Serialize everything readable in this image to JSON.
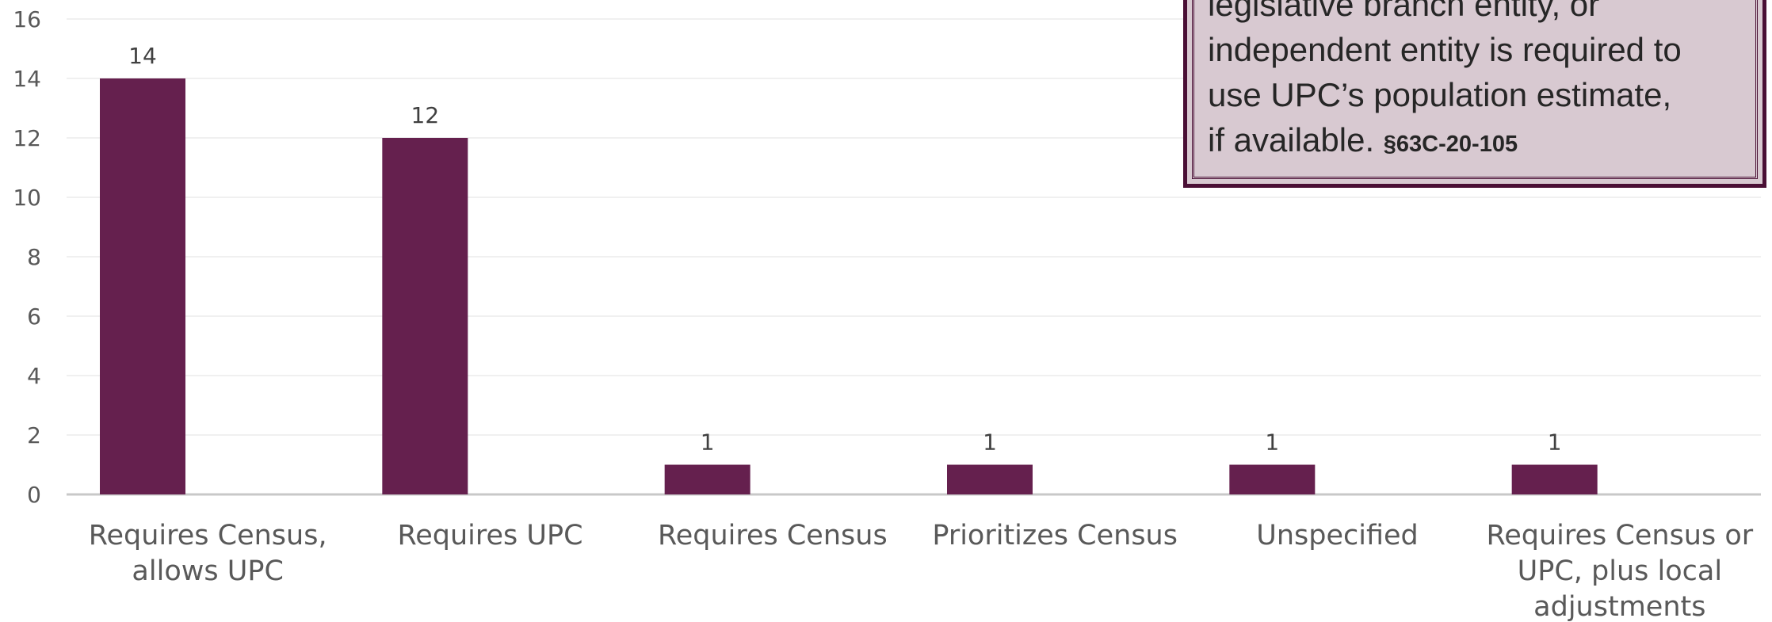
{
  "chart_data": {
    "type": "bar",
    "categories": [
      "Requires Census, allows UPC",
      "Requires UPC",
      "Requires Census",
      "Prioritizes Census",
      "Unspecified",
      "Requires Census or UPC, plus local adjustments"
    ],
    "values": [
      14,
      12,
      1,
      1,
      1,
      1
    ],
    "data_labels": [
      "14",
      "12",
      "1",
      "1",
      "1",
      "1"
    ],
    "yticks": [
      "0",
      "2",
      "4",
      "6",
      "8",
      "10",
      "12",
      "14",
      "16"
    ],
    "ylim": [
      0,
      16
    ],
    "grid": true,
    "bar_color": "#65204e",
    "title": "",
    "xlabel": "",
    "ylabel": ""
  },
  "callout": {
    "lines": [
      "legislative branch entity, or",
      "independent entity is required to",
      "use UPC’s population estimate,",
      "if available."
    ],
    "reference": "§63C-20-105",
    "border_color": "#4a0f35",
    "fill_color": "#d8c9d1"
  }
}
